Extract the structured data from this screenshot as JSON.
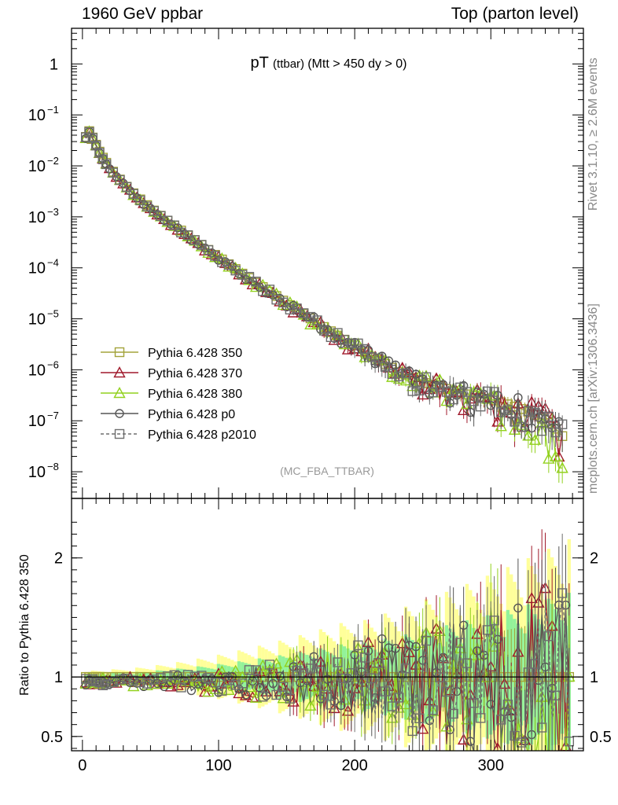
{
  "header": {
    "left": "1960 GeV ppbar",
    "right": "Top (parton level)"
  },
  "sidebar": {
    "rivet": "Rivet 3.1.10, ≥ 2.6M events",
    "mcplots": "mcplots.cern.ch [arXiv:1306.3436]"
  },
  "chart_data": {
    "type": "line",
    "title_main": "pT",
    "title_sub1": "(ttbar)",
    "title_sub2": "(Mtt > 450 dy > 0)",
    "analysis": "(MC_FBA_TTBAR)",
    "main": {
      "yscale": "log",
      "ylim": [
        3e-09,
        5
      ],
      "yticks": [
        {
          "v": 1,
          "label": "1"
        },
        {
          "v": 0.1,
          "label": "10",
          "exp": "−1"
        },
        {
          "v": 0.01,
          "label": "10",
          "exp": "−2"
        },
        {
          "v": 0.001,
          "label": "10",
          "exp": "−3"
        },
        {
          "v": 0.0001,
          "label": "10",
          "exp": "−4"
        },
        {
          "v": 1e-05,
          "label": "10",
          "exp": "−5"
        },
        {
          "v": 1e-06,
          "label": "10",
          "exp": "−6"
        },
        {
          "v": 1e-07,
          "label": "10",
          "exp": "−7"
        },
        {
          "v": 1e-08,
          "label": "10",
          "exp": "−8"
        }
      ],
      "pt_bins": [
        2.5,
        5,
        7.5,
        10,
        12.5,
        15,
        17.5,
        20,
        22.5,
        25,
        27.5,
        30,
        32.5,
        35,
        37.5,
        40,
        42.5,
        45,
        47.5,
        50,
        52.5,
        55,
        57.5,
        60,
        62.5,
        65,
        67.5,
        70,
        72.5,
        75,
        77.5,
        80,
        82.5,
        85,
        87.5,
        90,
        92.5,
        95,
        97.5,
        100,
        102.5,
        105,
        107.5,
        110,
        112.5,
        115,
        117.5,
        120,
        122.5,
        125,
        127.5,
        130,
        132.5,
        135,
        137.5,
        140,
        142.5,
        145,
        147.5,
        150,
        152.5,
        155,
        157.5,
        160,
        162.5,
        165,
        167.5,
        170,
        172.5,
        175,
        177.5,
        180,
        182.5,
        185,
        187.5,
        190,
        192.5,
        195,
        197.5,
        200,
        202.5,
        205,
        207.5,
        210,
        212.5,
        215,
        217.5,
        220,
        222.5,
        225,
        227.5,
        230,
        232.5,
        235,
        237.5,
        240,
        242.5,
        245,
        247.5,
        250,
        252.5,
        255,
        257.5,
        260,
        262.5,
        265,
        267.5,
        270,
        272.5,
        275,
        277.5,
        280,
        282.5,
        285,
        287.5,
        290,
        292.5,
        295,
        297.5,
        300,
        302.5,
        305,
        307.5,
        310,
        312.5,
        315,
        317.5,
        320,
        322.5,
        325,
        327.5,
        330,
        332.5,
        335,
        337.5,
        340,
        342.5,
        345,
        347.5,
        350,
        352.5,
        355,
        357.5
      ],
      "reference_values": [
        0.037,
        0.048,
        0.036,
        0.026,
        0.019,
        0.0145,
        0.0115,
        0.0093,
        0.0077,
        0.0064,
        0.0054,
        0.0046,
        0.0039,
        0.0034,
        0.0029,
        0.0025,
        0.0022,
        0.0019,
        0.0017,
        0.0015,
        0.00133,
        0.00118,
        0.00105,
        0.00094,
        0.00084,
        0.00075,
        0.00067,
        0.0006,
        0.00054,
        0.00048,
        0.00043,
        0.00039,
        0.00035,
        0.00031,
        0.00028,
        0.00025,
        0.000225,
        0.0002,
        0.00018,
        0.000162,
        0.000146,
        0.000131,
        0.000118,
        0.000106,
        9.5e-05,
        8.6e-05,
        7.7e-05,
        7e-05,
        6.3e-05,
        5.7e-05,
        5.1e-05,
        4.6e-05,
        4.2e-05,
        3.8e-05,
        3.4e-05,
        3.1e-05,
        2.8e-05,
        2.5e-05,
        2.28e-05,
        2.06e-05,
        1.86e-05,
        1.68e-05,
        1.52e-05,
        1.38e-05,
        1.25e-05,
        1.13e-05,
        1.02e-05,
        9.3e-06,
        8.4e-06,
        7.6e-06,
        6.9e-06,
        6.3e-06,
        5.7e-06,
        5.2e-06,
        4.7e-06,
        4.3e-06,
        3.9e-06,
        3.5e-06,
        3.2e-06,
        2.9e-06,
        2.6e-06,
        2.4e-06,
        2.2e-06,
        2e-06,
        1.8e-06,
        1.6e-06,
        1.5e-06,
        1.4e-06,
        1.3e-06,
        1.2e-06,
        1.1e-06,
        1e-06,
        9e-07,
        8.5e-07,
        8e-07,
        7.5e-07,
        7e-07,
        6.5e-07,
        6e-07,
        5.8e-07,
        5.5e-07,
        5.2e-07,
        5e-07,
        4.8e-07,
        4.6e-07,
        4.4e-07,
        4.2e-07,
        4e-07,
        3.8e-07,
        3.6e-07,
        3.5e-07,
        3.4e-07,
        3.3e-07,
        3.2e-07,
        3.1e-07,
        3e-07,
        2.9e-07,
        2.8e-07,
        2.7e-07,
        2.6e-07,
        2.5e-07,
        2.4e-07,
        2.3e-07,
        2.2e-07,
        2.1e-07,
        2e-07,
        1.9e-07,
        1.8e-07,
        1.7e-07,
        1.6e-07,
        1.5e-07,
        1.4e-07,
        1.3e-07,
        1.2e-07,
        1.1e-07,
        1e-07,
        9e-08,
        8e-08,
        7e-08,
        6e-08,
        5e-08
      ]
    },
    "ratio": {
      "ylabel": "Ratio to Pythia 6.428 350",
      "ylim": [
        0.38,
        2.5
      ],
      "yticks": [
        {
          "v": 0.5,
          "label": "0.5"
        },
        {
          "v": 1,
          "label": "1"
        },
        {
          "v": 2,
          "label": "2"
        }
      ],
      "band_yellow_halfwidth_start": 0.04,
      "band_yellow_halfwidth_end": 0.9,
      "band_green_halfwidth_start": 0.02,
      "band_green_halfwidth_end": 0.55
    },
    "x": {
      "xlim": [
        -8,
        368
      ],
      "xticks": [
        {
          "v": 0,
          "label": "0"
        },
        {
          "v": 100,
          "label": "100"
        },
        {
          "v": 200,
          "label": "200"
        },
        {
          "v": 300,
          "label": "300"
        }
      ]
    },
    "series": [
      {
        "name": "Pythia 6.428 350",
        "color": "#a3a33a",
        "marker": "square",
        "dash": false,
        "scale": 1.0,
        "seed": 1
      },
      {
        "name": "Pythia 6.428 370",
        "color": "#a0192b",
        "marker": "triangle",
        "dash": false,
        "scale": 1.0,
        "seed": 2
      },
      {
        "name": "Pythia 6.428 380",
        "color": "#92d11e",
        "marker": "triangle",
        "dash": false,
        "scale": 1.0,
        "seed": 3
      },
      {
        "name": "Pythia 6.428 p0",
        "color": "#555555",
        "marker": "circle",
        "dash": false,
        "scale": 1.0,
        "seed": 4
      },
      {
        "name": "Pythia 6.428 p2010",
        "color": "#6e6e6e",
        "marker": "square",
        "dash": true,
        "scale": 1.0,
        "seed": 5
      }
    ]
  }
}
